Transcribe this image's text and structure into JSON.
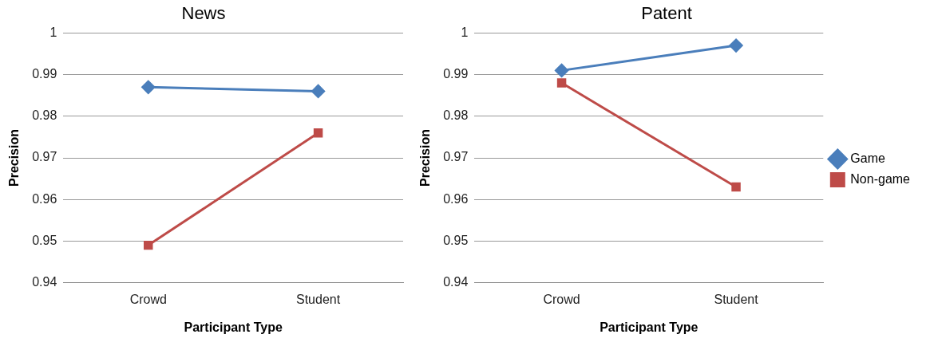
{
  "chart_data": [
    {
      "type": "line",
      "title": "News",
      "xlabel": "Participant Type",
      "ylabel": "Precision",
      "categories": [
        "Crowd",
        "Student"
      ],
      "ylim": [
        0.94,
        1
      ],
      "yticks": [
        0.94,
        0.95,
        0.96,
        0.97,
        0.98,
        0.99,
        {
          "value": 1,
          "label": "1"
        }
      ],
      "grid": "y",
      "legend": false,
      "series": [
        {
          "color": "#4a7ebb",
          "marker": "diamond",
          "values": [
            0.987,
            0.986
          ]
        },
        {
          "color": "#be4b48",
          "marker": "square",
          "values": [
            0.949,
            0.976
          ]
        }
      ]
    },
    {
      "type": "line",
      "title": "Patent",
      "xlabel": "Participant Type",
      "ylabel": "Precision",
      "categories": [
        "Crowd",
        "Student"
      ],
      "ylim": [
        0.94,
        1
      ],
      "yticks": [
        0.94,
        0.95,
        0.96,
        0.97,
        0.98,
        0.99,
        {
          "value": 1,
          "label": "1"
        }
      ],
      "grid": "y",
      "legend": "right",
      "series": [
        {
          "name": "Game",
          "color": "#4a7ebb",
          "marker": "diamond",
          "values": [
            0.991,
            0.997
          ]
        },
        {
          "name": "Non-game",
          "color": "#be4b48",
          "marker": "square",
          "values": [
            0.988,
            0.963
          ]
        }
      ]
    }
  ]
}
